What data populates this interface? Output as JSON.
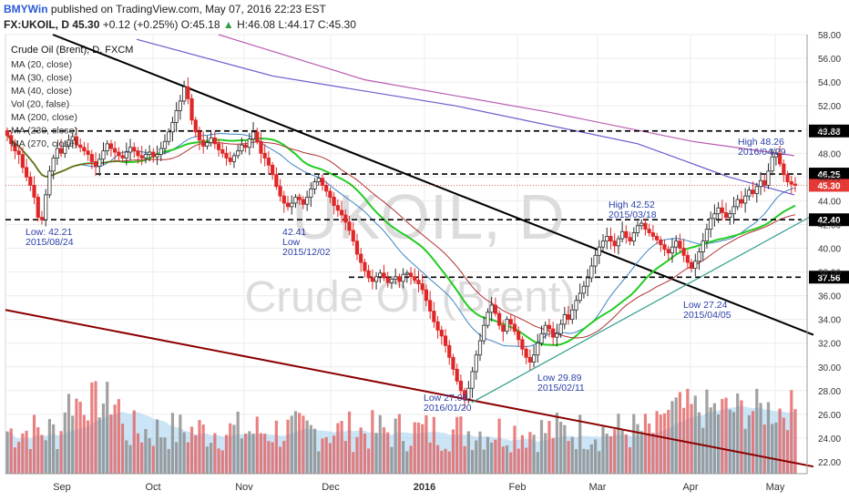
{
  "header": {
    "author": "BMYWin",
    "published_text": "published on TradingView.com, May 07, 2016 22:23 EST",
    "symbol_line": {
      "symbol": "FX:UKOIL, D",
      "last": "45.30",
      "change": "+0.12 (+0.25%)",
      "open": "O:45.18",
      "high_arrow": "▲",
      "high": "H:46.08",
      "low": "L:44.17",
      "close": "C:45.30"
    }
  },
  "legend": {
    "title": "Crude Oil (Brent), D, FXCM",
    "items": [
      "MA (20, close)",
      "MA (30, close)",
      "MA (40, close)",
      "Vol (20, false)",
      "MA (200, close)",
      "MA (230, close)",
      "MA (270, close)"
    ]
  },
  "watermark": {
    "main": "UKOIL, D",
    "sub": "Crude Oil (Brent)"
  },
  "chart_data": {
    "type": "candlestick",
    "title": "Crude Oil (Brent), D, FXCM",
    "ylim": [
      21,
      58
    ],
    "y_ticks": [
      22,
      24,
      26,
      28,
      30,
      32,
      34,
      36,
      38,
      40,
      42,
      44,
      46,
      48,
      50,
      52,
      54,
      56,
      58
    ],
    "x_ticks": [
      "Sep",
      "Oct",
      "Nov",
      "Dec",
      "2016",
      "Feb",
      "Mar",
      "Apr",
      "May"
    ],
    "levels": [
      49.88,
      46.25,
      42.4,
      37.56
    ],
    "last_price": 45.3,
    "annotations": [
      {
        "lines": [
          "Low: 42.21",
          "2015/08/24"
        ],
        "value": 42.21
      },
      {
        "lines": [
          "42.41",
          "Low",
          "2015/12/02"
        ],
        "value": 42.41
      },
      {
        "lines": [
          "Low 27.08",
          "2016/01/20"
        ],
        "value": 27.08
      },
      {
        "lines": [
          "Low 29.89",
          "2015/02/11"
        ],
        "value": 29.89
      },
      {
        "lines": [
          "High 42.52",
          "2015/03/18"
        ],
        "value": 42.52
      },
      {
        "lines": [
          "Low 27.24",
          "2015/04/05"
        ],
        "value": 27.24
      },
      {
        "lines": [
          "High 48.26",
          "2016/04/29"
        ],
        "value": 48.26
      }
    ],
    "closes": [
      49.5,
      48.8,
      48.2,
      47.9,
      46.8,
      46.0,
      45.3,
      44.3,
      42.6,
      42.4,
      44.5,
      46.5,
      47.6,
      48.4,
      48.0,
      48.6,
      49.1,
      49.4,
      48.7,
      48.5,
      48.2,
      47.9,
      47.3,
      46.9,
      47.5,
      48.2,
      48.8,
      48.4,
      48.1,
      47.8,
      47.6,
      48.1,
      48.5,
      48.2,
      47.8,
      47.6,
      47.9,
      48.1,
      47.7,
      47.9,
      48.4,
      49.0,
      49.8,
      50.6,
      51.6,
      52.4,
      53.6,
      52.6,
      50.8,
      49.8,
      49.1,
      48.6,
      48.9,
      49.3,
      48.8,
      48.3,
      48.0,
      47.6,
      47.3,
      47.8,
      48.2,
      48.7,
      48.5,
      49.2,
      49.8,
      49.0,
      48.0,
      47.6,
      47.0,
      46.2,
      45.2,
      44.4,
      43.8,
      43.5,
      43.8,
      44.3,
      44.1,
      43.7,
      44.3,
      45.0,
      45.6,
      45.9,
      45.3,
      44.8,
      44.3,
      43.6,
      43.2,
      42.8,
      42.2,
      41.5,
      40.6,
      39.5,
      38.8,
      38.1,
      37.5,
      37.2,
      37.6,
      37.9,
      37.5,
      37.1,
      37.4,
      37.6,
      37.2,
      37.8,
      37.9,
      37.6,
      37.3,
      37.0,
      36.5,
      35.6,
      34.7,
      33.8,
      33.1,
      32.6,
      31.8,
      30.8,
      29.8,
      28.8,
      28.0,
      27.3,
      28.2,
      29.6,
      31.0,
      32.2,
      33.5,
      34.6,
      35.2,
      34.5,
      33.5,
      33.0,
      34.0,
      33.6,
      33.0,
      32.3,
      31.5,
      30.8,
      30.4,
      31.0,
      32.0,
      32.8,
      33.5,
      33.2,
      32.5,
      32.8,
      33.6,
      34.4,
      34.0,
      34.8,
      35.6,
      36.2,
      36.8,
      37.5,
      38.5,
      39.4,
      40.1,
      40.6,
      41.0,
      40.6,
      40.2,
      40.8,
      41.4,
      40.9,
      40.6,
      41.3,
      41.9,
      42.1,
      41.6,
      41.3,
      41.0,
      40.7,
      40.3,
      39.9,
      39.6,
      40.1,
      40.6,
      40.0,
      39.4,
      38.8,
      38.3,
      38.9,
      39.7,
      40.6,
      41.6,
      42.5,
      42.9,
      43.4,
      43.0,
      42.6,
      42.9,
      43.5,
      44.1,
      43.8,
      44.4,
      44.9,
      44.6,
      45.2,
      45.7,
      45.3,
      46.5,
      47.7,
      48.0,
      47.1,
      46.2,
      45.6,
      45.4,
      45.3
    ]
  }
}
